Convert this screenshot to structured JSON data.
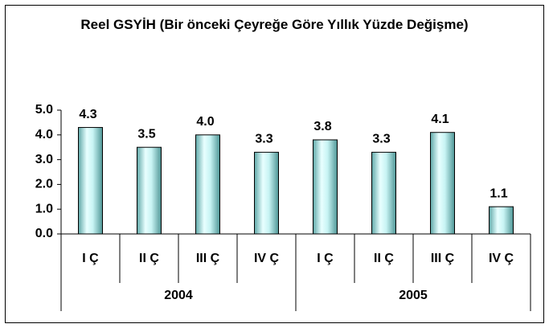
{
  "chart_data": {
    "type": "bar",
    "title": "Reel GSYİH (Bir önceki Çeyreğe Göre Yıllık Yüzde Değişme)",
    "categories": [
      "I Ç",
      "II Ç",
      "III Ç",
      "IV Ç",
      "I Ç",
      "II Ç",
      "III Ç",
      "IV Ç"
    ],
    "groups": [
      "2004",
      "2005"
    ],
    "values": [
      4.3,
      3.5,
      4.0,
      3.3,
      3.8,
      3.3,
      4.1,
      1.1
    ],
    "value_labels": [
      "4.3",
      "3.5",
      "4.0",
      "3.3",
      "3.8",
      "3.3",
      "4.1",
      "1.1"
    ],
    "color": "#b8eeee",
    "ylim": [
      0,
      5
    ],
    "yticks": [
      {
        "value": 0,
        "label": "0.0"
      },
      {
        "value": 1,
        "label": "1.0"
      },
      {
        "value": 2,
        "label": "2.0"
      },
      {
        "value": 3,
        "label": "3.0"
      },
      {
        "value": 4,
        "label": "4.0"
      },
      {
        "value": 5,
        "label": "5.0"
      }
    ],
    "grid": false
  }
}
